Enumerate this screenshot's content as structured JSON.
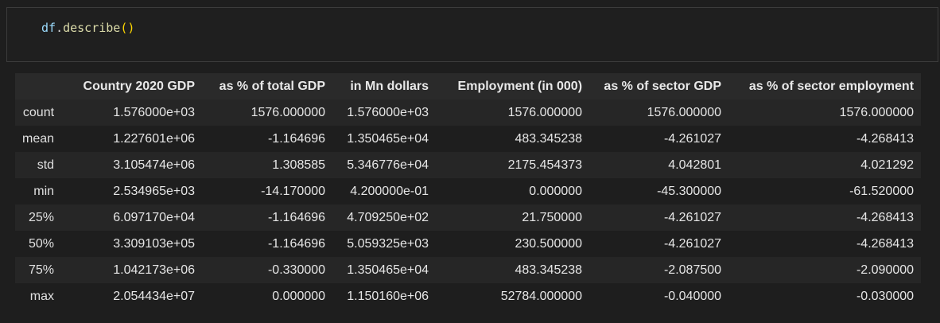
{
  "input_cell": {
    "code": {
      "object": "df",
      "dot": ".",
      "method": "describe",
      "parens": "()"
    }
  },
  "output_table": {
    "columns": [
      "",
      "Country 2020 GDP",
      "as % of total GDP",
      "in Mn dollars",
      "Employment (in 000)",
      "as % of sector GDP",
      "as % of sector employment"
    ],
    "rows": [
      {
        "index": "count",
        "values": [
          "1.576000e+03",
          "1576.000000",
          "1.576000e+03",
          "1576.000000",
          "1576.000000",
          "1576.000000"
        ]
      },
      {
        "index": "mean",
        "values": [
          "1.227601e+06",
          "-1.164696",
          "1.350465e+04",
          "483.345238",
          "-4.261027",
          "-4.268413"
        ]
      },
      {
        "index": "std",
        "values": [
          "3.105474e+06",
          "1.308585",
          "5.346776e+04",
          "2175.454373",
          "4.042801",
          "4.021292"
        ]
      },
      {
        "index": "min",
        "values": [
          "2.534965e+03",
          "-14.170000",
          "4.200000e-01",
          "0.000000",
          "-45.300000",
          "-61.520000"
        ]
      },
      {
        "index": "25%",
        "values": [
          "6.097170e+04",
          "-1.164696",
          "4.709250e+02",
          "21.750000",
          "-4.261027",
          "-4.268413"
        ]
      },
      {
        "index": "50%",
        "values": [
          "3.309103e+05",
          "-1.164696",
          "5.059325e+03",
          "230.500000",
          "-4.261027",
          "-4.268413"
        ]
      },
      {
        "index": "75%",
        "values": [
          "1.042173e+06",
          "-0.330000",
          "1.350465e+04",
          "483.345238",
          "-2.087500",
          "-2.090000"
        ]
      },
      {
        "index": "max",
        "values": [
          "2.054434e+07",
          "0.000000",
          "1.150160e+06",
          "52784.000000",
          "-0.040000",
          "-0.030000"
        ]
      }
    ]
  }
}
